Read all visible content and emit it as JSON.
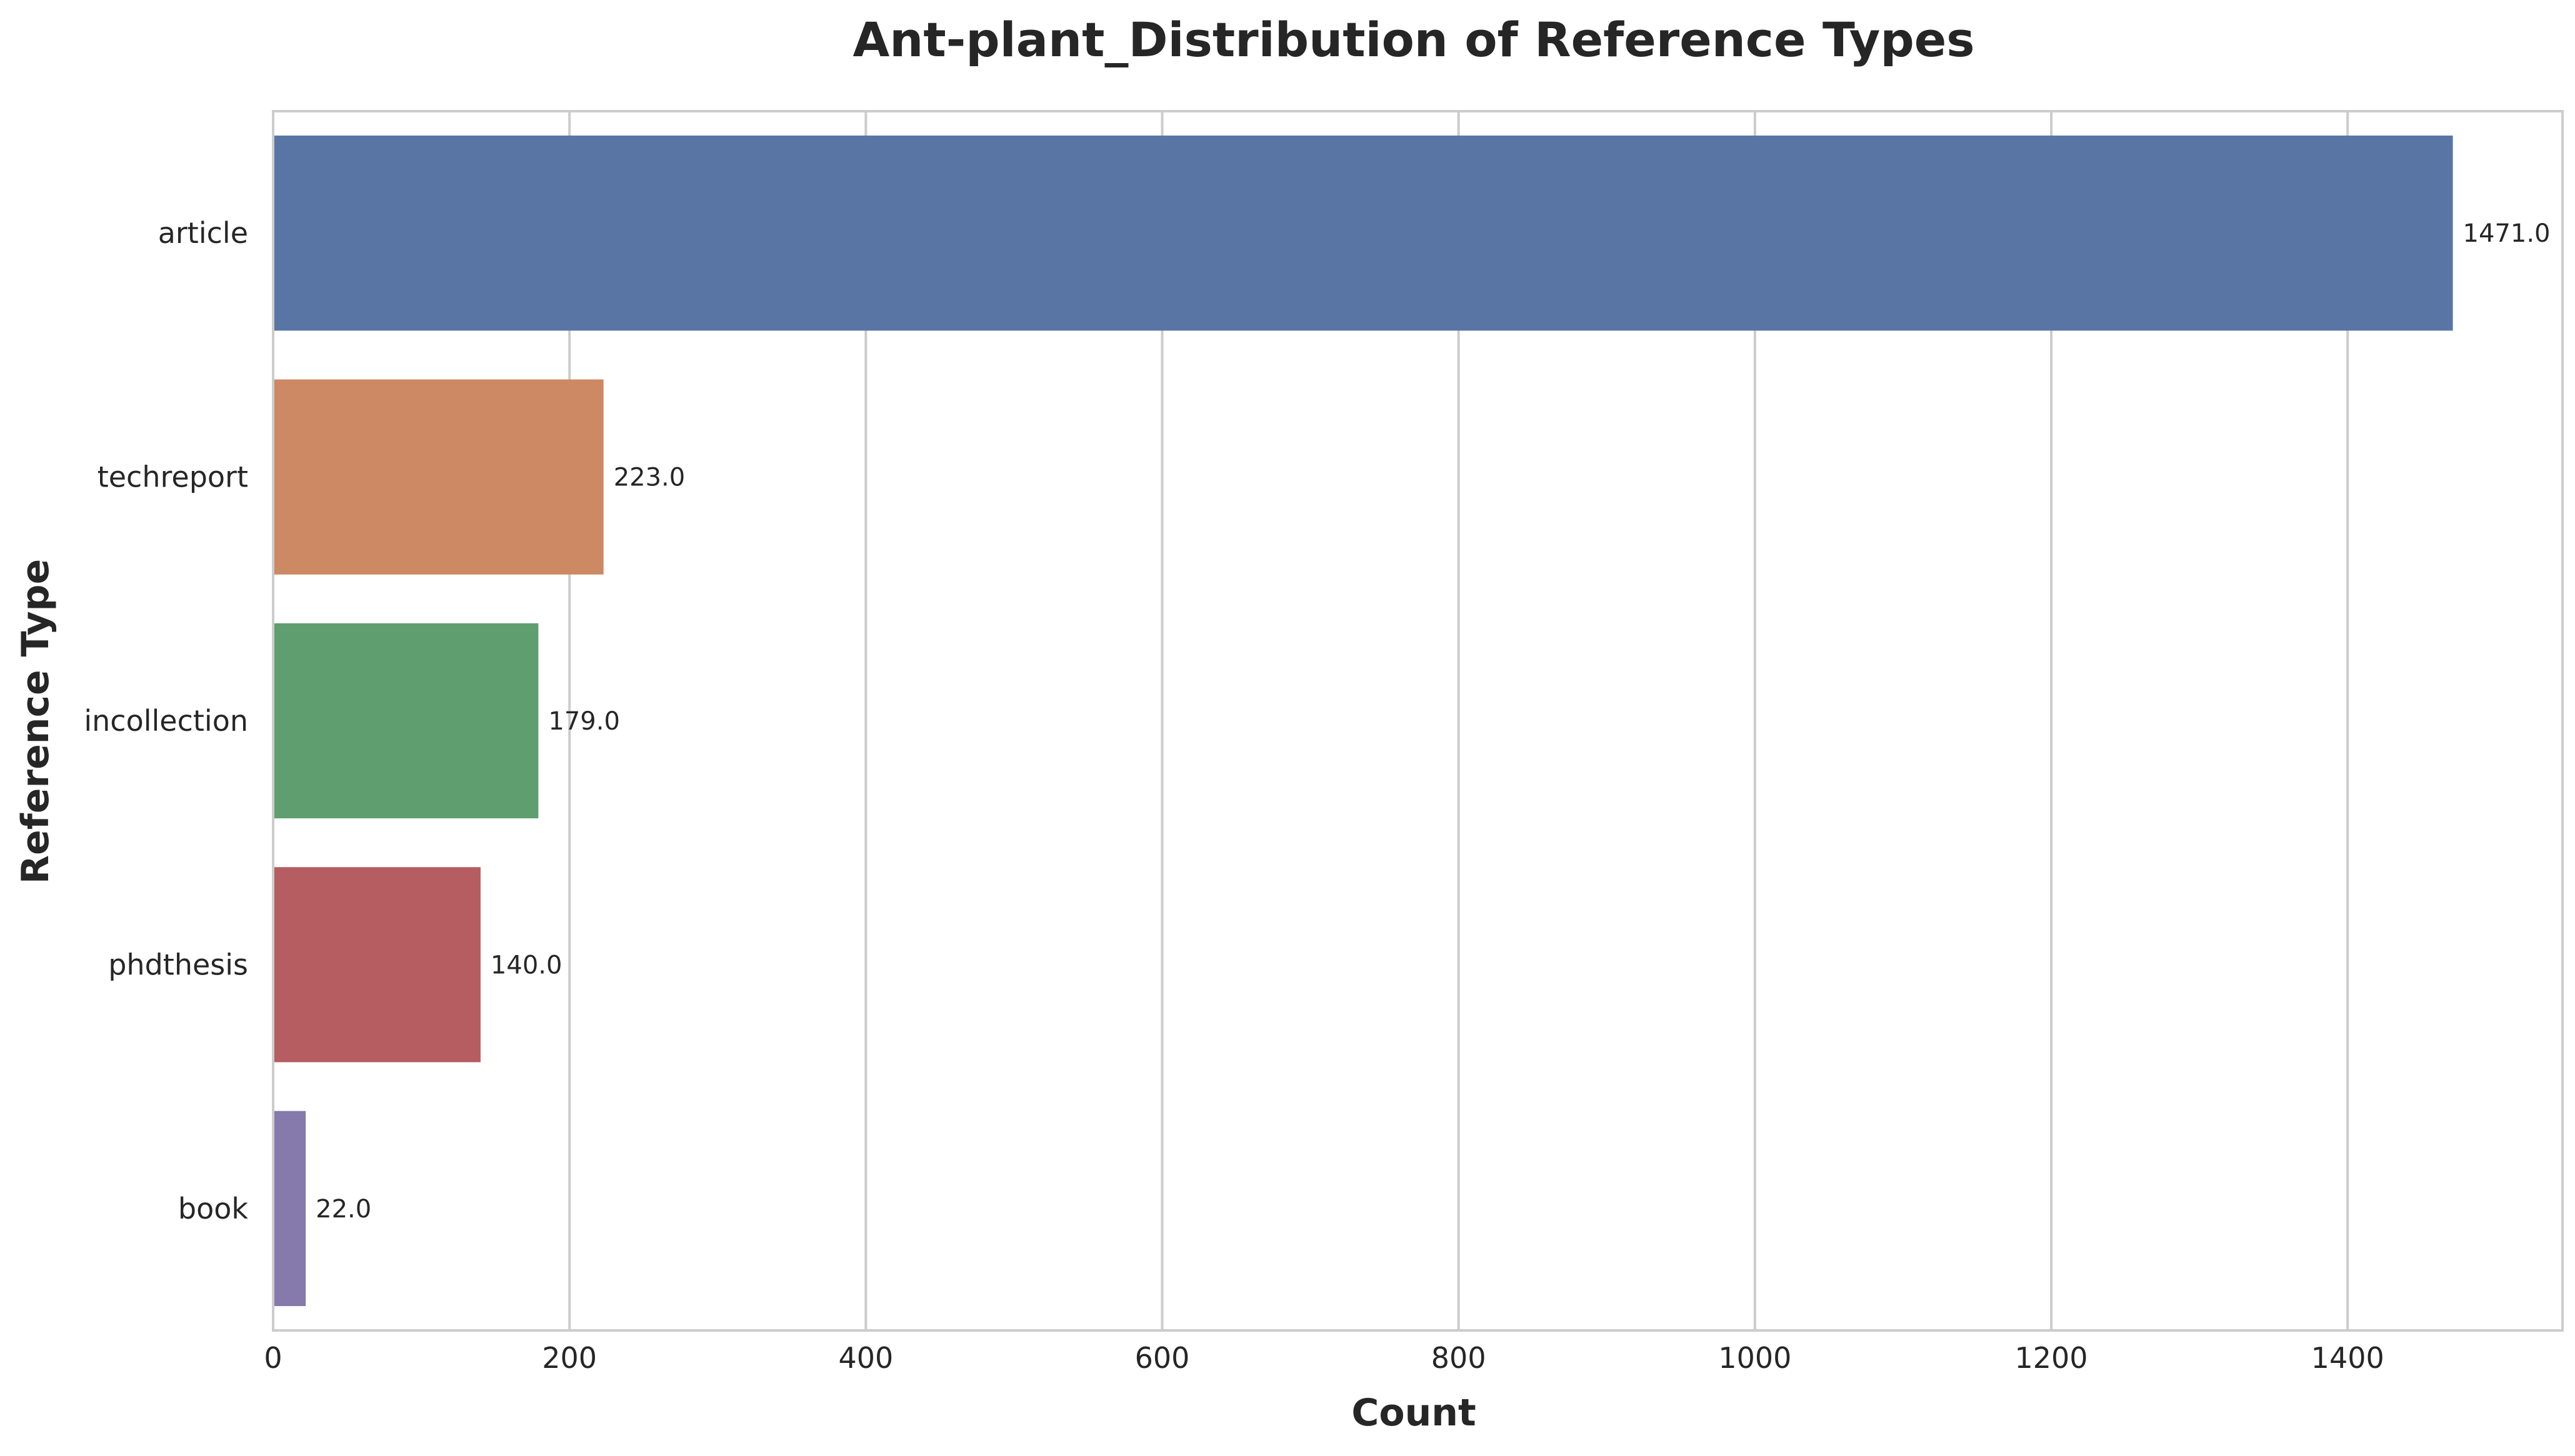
{
  "chart_data": {
    "type": "bar",
    "orientation": "horizontal",
    "title": "Ant-plant_Distribution of Reference Types",
    "xlabel": "Count",
    "ylabel": "Reference Type",
    "categories": [
      "article",
      "techreport",
      "incollection",
      "phdthesis",
      "book"
    ],
    "values": [
      1471,
      223,
      179,
      140,
      22
    ],
    "data_labels": [
      "1471.0",
      "223.0",
      "179.0",
      "140.0",
      "22.0"
    ],
    "colors": [
      "#5875a4",
      "#cc8963",
      "#5f9e6e",
      "#b55d60",
      "#857aab"
    ],
    "xlim": [
      0,
      1545
    ],
    "xticks": [
      0,
      200,
      400,
      600,
      800,
      1000,
      1200,
      1400
    ],
    "grid": "vertical"
  }
}
